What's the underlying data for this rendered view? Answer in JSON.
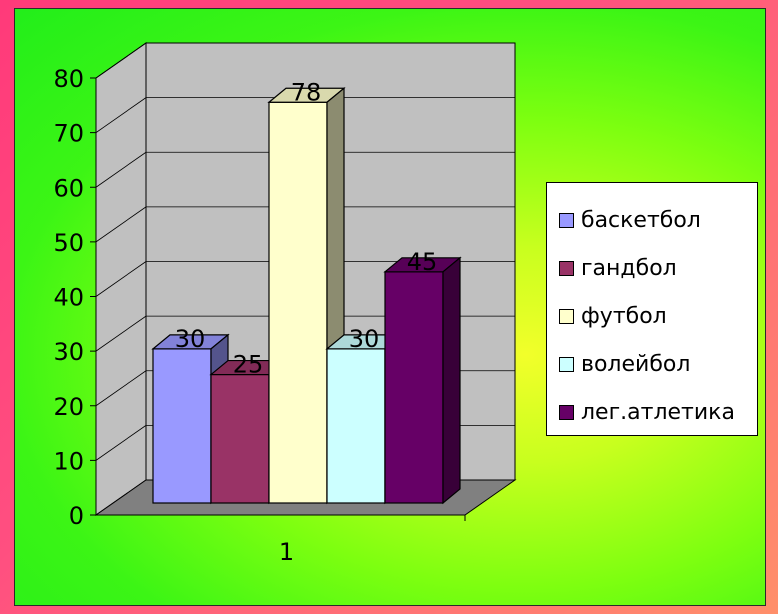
{
  "chart_data": {
    "type": "bar",
    "categories": [
      "1"
    ],
    "series": [
      {
        "name": "баскетбол",
        "values": [
          30
        ],
        "color": "#9999ff"
      },
      {
        "name": "гандбол",
        "values": [
          25
        ],
        "color": "#993366"
      },
      {
        "name": "футбол",
        "values": [
          78
        ],
        "color": "#ffffcc"
      },
      {
        "name": "волейбол",
        "values": [
          30
        ],
        "color": "#ccffff"
      },
      {
        "name": "лег.атлетика",
        "values": [
          45
        ],
        "color": "#660066"
      }
    ],
    "y_ticks": [
      "0",
      "10",
      "20",
      "30",
      "40",
      "50",
      "60",
      "70",
      "80"
    ],
    "ylim": [
      0,
      80
    ],
    "grid": true,
    "legend_position": "right",
    "colors": {
      "wall": "#c0c0c0",
      "floor": "#808080",
      "background": "#44f01a"
    }
  }
}
